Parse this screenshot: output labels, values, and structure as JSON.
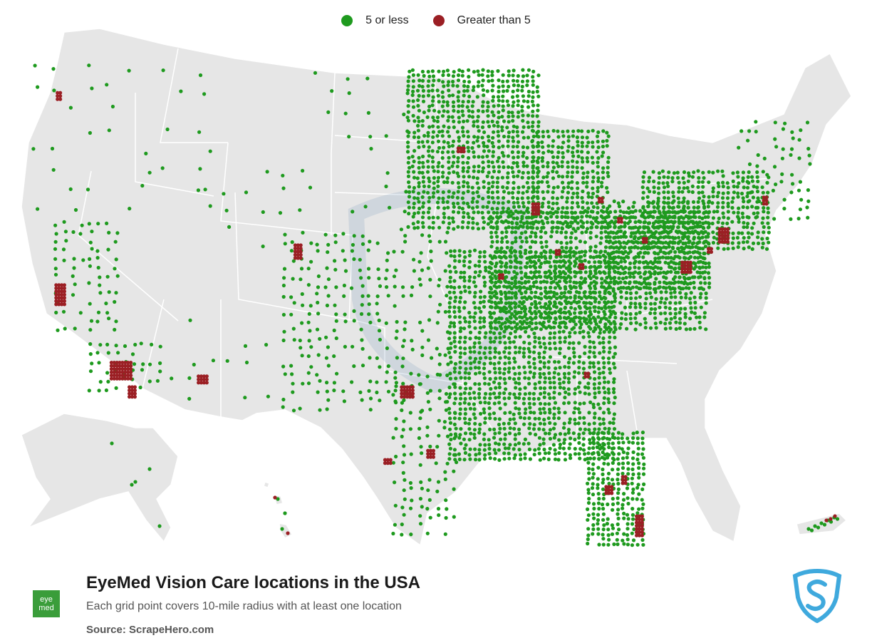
{
  "legend": {
    "items": [
      {
        "label": "5 or less",
        "color": "#1e9a1e"
      },
      {
        "label": "Greater than 5",
        "color": "#9b1f24"
      }
    ]
  },
  "title": "EyeMed Vision Care locations in the USA",
  "subtitle": "Each grid point covers 10-mile radius with at least one location",
  "source": "Source: ScrapeHero.com",
  "logo": {
    "line1": "eye",
    "line2": "med"
  },
  "colors": {
    "land": "#e6e6e6",
    "borders": "#ffffff",
    "low": "#1e9a1e",
    "high": "#9b1f24"
  },
  "regions": {
    "low_density": [
      [
        -124.0,
        47.0,
        -117.0,
        49.0,
        "sparse"
      ],
      [
        -124.0,
        42.0,
        -116.5,
        46.5,
        "sparse"
      ],
      [
        -122.5,
        36.0,
        -118.0,
        41.5,
        "medium"
      ],
      [
        -120.0,
        33.0,
        -114.5,
        35.5,
        "medium"
      ],
      [
        -116.0,
        43.0,
        -111.0,
        49.0,
        "sparse"
      ],
      [
        -111.5,
        40.0,
        -104.5,
        45.5,
        "sparse"
      ],
      [
        -114.0,
        31.5,
        -106.0,
        37.0,
        "sparse"
      ],
      [
        -106.0,
        32.0,
        -94.0,
        41.0,
        "medium"
      ],
      [
        -104.0,
        41.0,
        -96.0,
        49.0,
        "sparse"
      ],
      [
        -98.0,
        25.8,
        -93.5,
        34.0,
        "medium"
      ],
      [
        -97.0,
        41.0,
        -87.5,
        49.0,
        "dense"
      ],
      [
        -94.0,
        29.5,
        -82.0,
        40.0,
        "dense"
      ],
      [
        -91.0,
        36.0,
        -75.5,
        42.0,
        "dense"
      ],
      [
        -88.0,
        41.0,
        -82.5,
        46.0,
        "dense"
      ],
      [
        -84.0,
        25.0,
        -80.0,
        31.0,
        "dense"
      ],
      [
        -82.5,
        38.0,
        -75.0,
        42.5,
        "dense"
      ],
      [
        -80.0,
        40.0,
        -71.0,
        44.0,
        "dense"
      ],
      [
        -73.0,
        41.5,
        -67.5,
        46.5,
        "medium"
      ]
    ],
    "high_density": [
      [
        -122.5,
        37.2,
        -121.8,
        38.2
      ],
      [
        -118.5,
        33.5,
        -117.0,
        34.3
      ],
      [
        -117.2,
        32.6,
        -116.8,
        33.2
      ],
      [
        -112.2,
        33.3,
        -111.6,
        33.7
      ],
      [
        -105.2,
        39.5,
        -104.8,
        40.2
      ],
      [
        -97.5,
        32.6,
        -96.6,
        33.1
      ],
      [
        -95.6,
        29.6,
        -95.1,
        30.0
      ],
      [
        -98.7,
        29.3,
        -98.3,
        29.6
      ],
      [
        -88.0,
        41.7,
        -87.6,
        42.2
      ],
      [
        -84.2,
        33.6,
        -84.0,
        33.9
      ],
      [
        -80.5,
        25.7,
        -80.1,
        26.8
      ],
      [
        -74.5,
        40.3,
        -73.7,
        41.0
      ],
      [
        -75.3,
        39.8,
        -74.9,
        40.1
      ],
      [
        -77.2,
        38.8,
        -76.6,
        39.4
      ],
      [
        -71.3,
        42.2,
        -70.9,
        42.6
      ],
      [
        -82.7,
        27.8,
        -82.3,
        28.2
      ],
      [
        -81.5,
        28.3,
        -81.2,
        28.7
      ],
      [
        -93.4,
        44.8,
        -93.0,
        45.1
      ],
      [
        -90.4,
        38.5,
        -90.1,
        38.8
      ],
      [
        -83.2,
        42.3,
        -82.9,
        42.6
      ],
      [
        -84.6,
        39.0,
        -84.3,
        39.3
      ],
      [
        -86.3,
        39.7,
        -86.0,
        40.0
      ],
      [
        -122.4,
        47.4,
        -122.2,
        47.8
      ],
      [
        -80.0,
        40.3,
        -79.8,
        40.6
      ],
      [
        -81.8,
        41.3,
        -81.5,
        41.6
      ],
      [
        -96.9,
        32.6,
        -96.6,
        32.9
      ]
    ]
  }
}
